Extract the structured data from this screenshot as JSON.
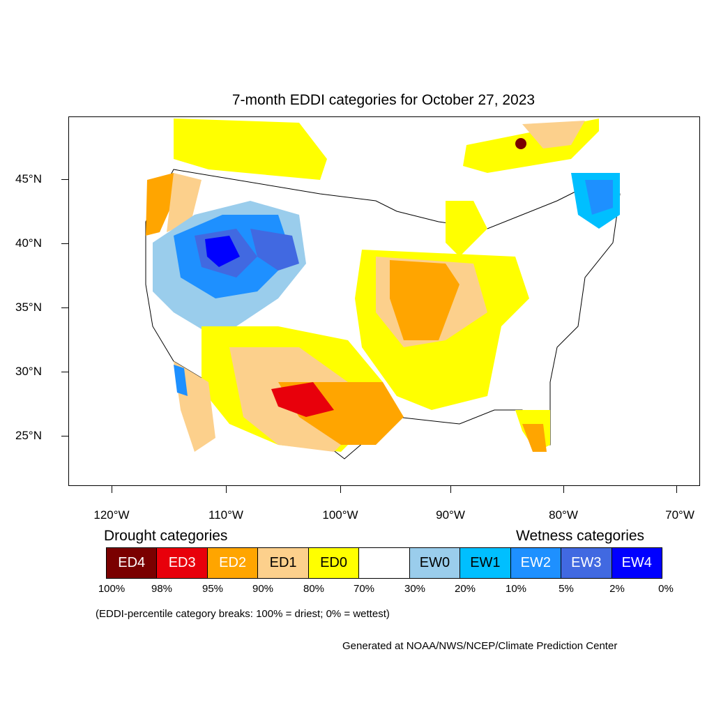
{
  "title": "7-month EDDI categories for October 27, 2023",
  "axes": {
    "lat_labels": [
      "45°N",
      "40°N",
      "35°N",
      "30°N",
      "25°N"
    ],
    "lon_labels": [
      "120°W",
      "110°W",
      "100°W",
      "90°W",
      "80°W",
      "70°W"
    ]
  },
  "legend": {
    "drought_heading": "Drought categories",
    "wetness_heading": "Wetness categories",
    "categories": [
      {
        "label": "ED4",
        "color": "#7a0000",
        "text_color": "#ffffff"
      },
      {
        "label": "ED3",
        "color": "#e8000b",
        "text_color": "#ffffff"
      },
      {
        "label": "ED2",
        "color": "#ffa500",
        "text_color": "#ffffff"
      },
      {
        "label": "ED1",
        "color": "#fcd08c",
        "text_color": "#000000"
      },
      {
        "label": "ED0",
        "color": "#ffff00",
        "text_color": "#000000"
      },
      {
        "label": "",
        "color": "#ffffff",
        "text_color": "#000000"
      },
      {
        "label": "EW0",
        "color": "#9acdec",
        "text_color": "#000000"
      },
      {
        "label": "EW1",
        "color": "#00bfff",
        "text_color": "#000000"
      },
      {
        "label": "EW2",
        "color": "#1e90ff",
        "text_color": "#ffffff"
      },
      {
        "label": "EW3",
        "color": "#4169e1",
        "text_color": "#ffffff"
      },
      {
        "label": "EW4",
        "color": "#0000ff",
        "text_color": "#ffffff"
      }
    ],
    "percentiles": [
      "100%",
      "98%",
      "95%",
      "90%",
      "80%",
      "70%",
      "30%",
      "20%",
      "10%",
      "5%",
      "2%",
      "0%"
    ]
  },
  "note": "(EDDI-percentile category breaks: 100% = driest; 0% = wettest)",
  "credit": "Generated at NOAA/NWS/NCEP/Climate Prediction Center"
}
